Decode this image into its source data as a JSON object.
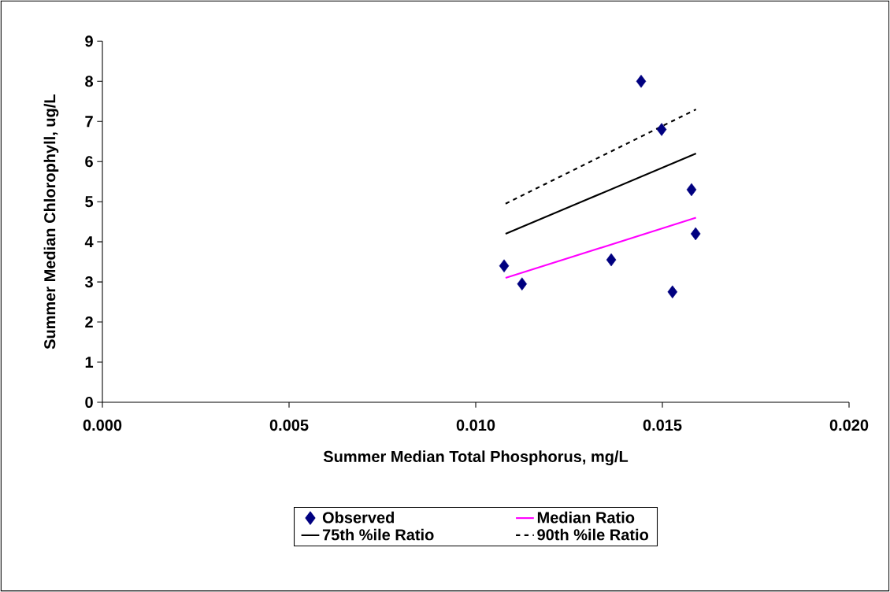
{
  "chart_data": {
    "type": "scatter",
    "xlabel": "Summer Median Total Phosphorus, mg/L",
    "ylabel": "Summer Median Chlorophyll, ug/L",
    "xlim": [
      0,
      0.02
    ],
    "ylim": [
      0,
      9
    ],
    "xticks": [
      {
        "value": 0,
        "label": "0.000"
      },
      {
        "value": 0.005,
        "label": "0.005"
      },
      {
        "value": 0.01,
        "label": "0.010"
      },
      {
        "value": 0.015,
        "label": "0.015"
      },
      {
        "value": 0.02,
        "label": "0.020"
      }
    ],
    "yticks": [
      0,
      1,
      2,
      3,
      4,
      5,
      6,
      7,
      8,
      9
    ],
    "legend": "bottom",
    "series": [
      {
        "name": "Observed",
        "marker": "diamond",
        "color": "#000080",
        "x": [
          0.01076,
          0.01124,
          0.01363,
          0.01443,
          0.01498,
          0.01527,
          0.01578,
          0.01589
        ],
        "values": [
          3.4,
          2.95,
          3.55,
          8.0,
          6.8,
          2.75,
          5.3,
          4.2
        ]
      },
      {
        "name": "Median Ratio",
        "type": "line",
        "line_style": "solid",
        "color": "#ff00ff",
        "x": [
          0.0108,
          0.0159
        ],
        "values": [
          3.1,
          4.6
        ]
      },
      {
        "name": "75th %ile Ratio",
        "type": "line",
        "line_style": "solid",
        "color": "#000000",
        "x": [
          0.0108,
          0.0159
        ],
        "values": [
          4.2,
          6.2
        ]
      },
      {
        "name": "90th %ile Ratio",
        "type": "line",
        "line_style": "dashed",
        "color": "#000000",
        "x": [
          0.0108,
          0.0159
        ],
        "values": [
          4.95,
          7.3
        ]
      }
    ]
  }
}
